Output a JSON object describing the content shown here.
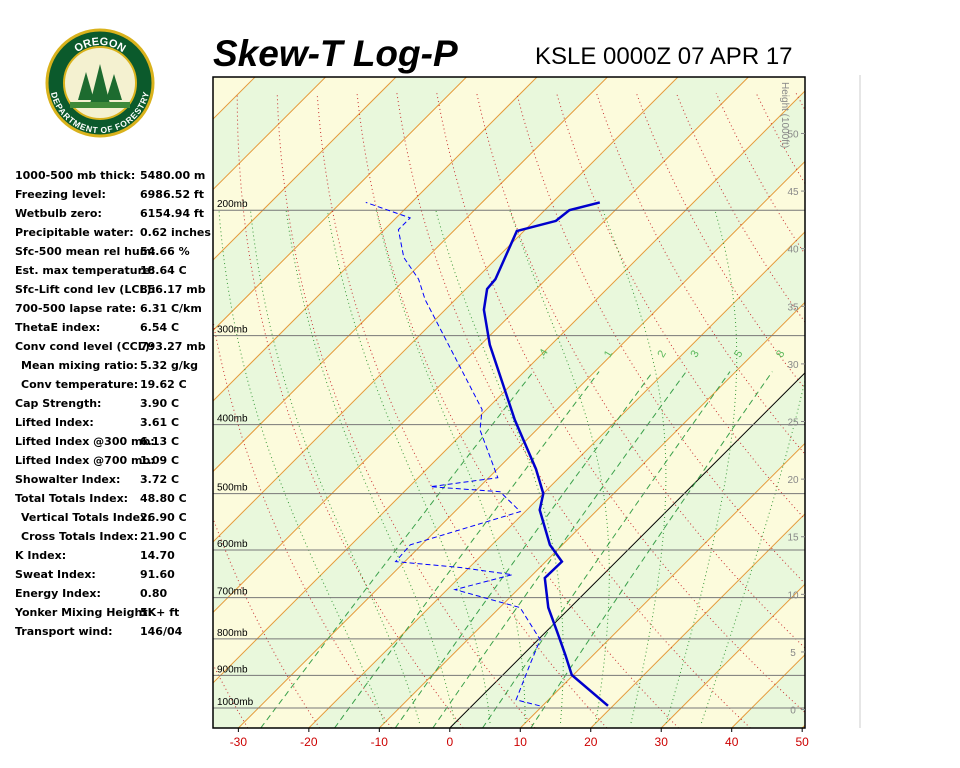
{
  "header": {
    "title": "Skew-T Log-P",
    "station": "KSLE 0000Z 07 APR 17"
  },
  "logo": {
    "top": "OREGON",
    "bottom": "DEPARTMENT OF FORESTRY"
  },
  "indices": [
    [
      "1000-500 mb thick:",
      "5480.00 m"
    ],
    [
      "Freezing level:",
      "6986.52 ft"
    ],
    [
      "Wetbulb zero:",
      "6154.94 ft"
    ],
    [
      "Precipitable water:",
      "0.62 inches"
    ],
    [
      "Sfc-500 mean rel hum:",
      "54.66 %"
    ],
    [
      "Est. max temperature:",
      "18.64 C"
    ],
    [
      "Sfc-Lift cond lev (LCL):",
      "856.17 mb"
    ],
    [
      "700-500 lapse rate:",
      "6.31 C/km"
    ],
    [
      "ThetaE index:",
      "6.54 C"
    ],
    [
      "Conv cond level (CCL):",
      "793.27 mb"
    ],
    [
      "Mean mixing ratio:",
      "5.32 g/kg"
    ],
    [
      "Conv temperature:",
      "19.62 C"
    ],
    [
      "Cap Strength:",
      "3.90 C"
    ],
    [
      "Lifted Index:",
      "3.61 C"
    ],
    [
      "Lifted Index @300 mb:",
      "6.13 C"
    ],
    [
      "Lifted Index @700 mb:",
      "1.09 C"
    ],
    [
      "Showalter Index:",
      "3.72 C"
    ],
    [
      "Total Totals Index:",
      "48.80 C"
    ],
    [
      "Vertical Totals Index:",
      "26.90 C"
    ],
    [
      "Cross Totals Index:",
      "21.90 C"
    ],
    [
      "K Index:",
      "14.70"
    ],
    [
      "Sweat Index:",
      "91.60"
    ],
    [
      "Energy Index:",
      "0.80"
    ],
    [
      "Yonker Mixing Height:",
      "5K+ ft"
    ],
    [
      "Transport wind:",
      "146/04"
    ]
  ],
  "chart_data": {
    "type": "skew-t",
    "xlim": [
      -33.6,
      50.4
    ],
    "xticks": [
      -30,
      -20,
      -10,
      0,
      10,
      20,
      30,
      40,
      50
    ],
    "ylim": [
      1067,
      130
    ],
    "log_scale": true,
    "yticks": [
      {
        "value": 200,
        "label": "200mb"
      },
      {
        "value": 300,
        "label": "300mb"
      },
      {
        "value": 400,
        "label": "400mb"
      },
      {
        "value": 500,
        "label": "500mb"
      },
      {
        "value": 600,
        "label": "600mb"
      },
      {
        "value": 700,
        "label": "700mb"
      },
      {
        "value": 800,
        "label": "800mb"
      },
      {
        "value": 900,
        "label": "900mb"
      },
      {
        "value": 1000,
        "label": "1000mb"
      }
    ],
    "y2label": "Height (1000ft)",
    "y2lim": [
      -1.6,
      54.9
    ],
    "y2ticks": [
      0,
      5,
      10,
      15,
      20,
      25,
      30,
      35,
      40,
      45,
      50
    ],
    "mixing_ratio_ticks": [
      {
        "value": 0.4,
        "label": ".4"
      },
      1,
      2,
      3,
      5,
      8
    ],
    "temperature": {
      "color": "#0000cc",
      "pressure": [
        993,
        899,
        842,
        782,
        723,
        657,
        623,
        590,
        527,
        500,
        462,
        394,
        309,
        276,
        258,
        250,
        214,
        207,
        200,
        195
      ],
      "values": [
        19.3,
        9.8,
        6.0,
        1.6,
        -3.1,
        -7.8,
        -7.7,
        -11.8,
        -18.2,
        -20.0,
        -24.5,
        -34.5,
        -48.7,
        -54.5,
        -57.0,
        -57.2,
        -61.0,
        -56.9,
        -56.5,
        -53.3
      ]
    },
    "dewpoint": {
      "color": "#0000ff",
      "pressure": [
        993,
        974,
        870,
        802,
        723,
        682,
        650,
        635,
        623,
        590,
        530,
        497,
        489,
        475,
        407,
        381,
        267,
        250,
        233,
        213,
        205,
        195
      ],
      "values": [
        9.6,
        5.4,
        2.4,
        0.3,
        -7.1,
        -18.9,
        -12.9,
        -21.3,
        -31.3,
        -31.6,
        -20.7,
        -26.4,
        -37.0,
        -28.7,
        -38.0,
        -40.6,
        -64.3,
        -68.1,
        -73.3,
        -78.0,
        -78.0,
        -86.5
      ]
    }
  }
}
